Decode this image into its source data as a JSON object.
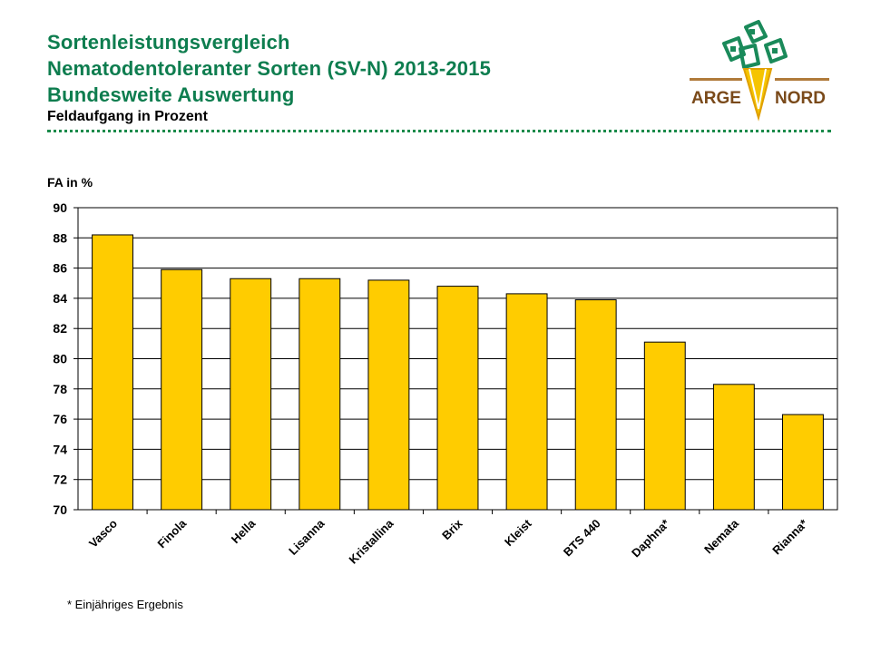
{
  "header": {
    "title_line1": "Sortenleistungsvergleich",
    "title_line2": "Nematodentoleranter Sorten (SV-N) 2013-2015",
    "title_line3": "Bundesweite Auswertung",
    "subtitle": "Feldaufgang in Prozent"
  },
  "logo": {
    "left_text": "ARGE",
    "right_text": "NORD"
  },
  "footnote": "* Einjähriges Ergebnis",
  "colors": {
    "bar": "#ffcc00",
    "title": "#0e7d4f",
    "logo_green": "#1a8a5a",
    "logo_yellow": "#f5c400"
  },
  "chart_data": {
    "type": "bar",
    "title": "",
    "xlabel": "",
    "ylabel": "FA in %",
    "categories": [
      "Vasco",
      "Finola",
      "Hella",
      "Lisanna",
      "Kristallina",
      "Brix",
      "Kleist",
      "BTS 440",
      "Daphna*",
      "Nemata",
      "Rianna*"
    ],
    "values": [
      88.2,
      85.9,
      85.3,
      85.3,
      85.2,
      84.8,
      84.3,
      83.9,
      81.1,
      78.3,
      76.3
    ],
    "ylim": [
      70,
      90
    ],
    "yticks": [
      70,
      72,
      74,
      76,
      78,
      80,
      82,
      84,
      86,
      88,
      90
    ],
    "grid": true,
    "legend": "none"
  }
}
